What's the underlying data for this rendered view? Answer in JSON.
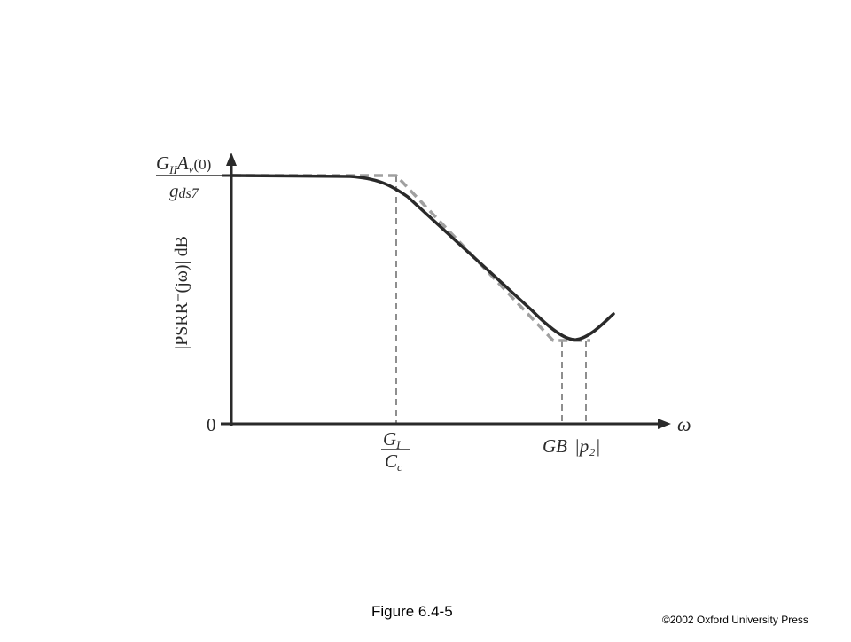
{
  "figure": {
    "caption": "Figure 6.4-5",
    "copyright": "©2002 Oxford University Press"
  },
  "axes": {
    "y_axis_label": "|PSRR⁻(jω)| dB",
    "x_axis_symbol": "ω",
    "y_origin_label": "0"
  },
  "labels": {
    "y_level": {
      "numerator_G": "G",
      "numerator_G_sub": "II",
      "numerator_A": "A",
      "numerator_A_sub": "v",
      "numerator_arg": "(0)",
      "denominator": "g",
      "denominator_sub": "ds7"
    },
    "x_breakpoint_1": {
      "numerator": "G",
      "numerator_sub": "I",
      "denominator": "C",
      "denominator_sub": "c"
    },
    "x_breakpoint_2": "GB",
    "x_breakpoint_3": "|p₂|"
  },
  "colors": {
    "curve": "#2a2a2a",
    "asymptote": "#a0a0a0",
    "axis": "#2a2a2a",
    "guide": "#444444"
  }
}
